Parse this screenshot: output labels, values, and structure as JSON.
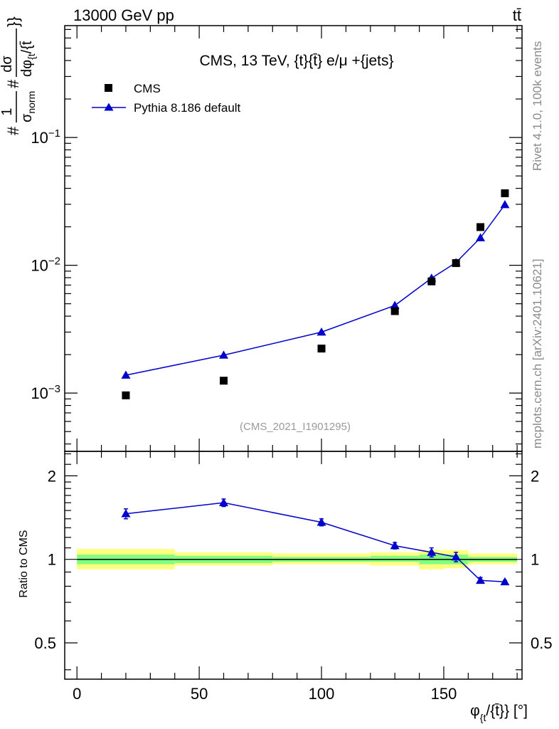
{
  "header": {
    "left_label": "13000 GeV pp",
    "right_label": "tt̄"
  },
  "side_notes": {
    "rivet": "Rivet 4.1.0,  100k events",
    "mcplots": "mcplots.cern.ch [arXiv:2401.10621]"
  },
  "colors": {
    "mc": "#0000cc",
    "data": "#000000",
    "band_outer": "#ffff80",
    "band_inner": "#80ff80"
  },
  "chart_data": [
    {
      "type": "scatter",
      "panel": "main",
      "title": "CMS, 13 TeV, {t}{t̄} e/μ +{jets}",
      "watermark": "(CMS_2021_I1901295)",
      "ylabel": "#1/σ_norm #dσ/dφ_{t}/{t̄}}",
      "ylabel_parts": {
        "prefix": "#",
        "frac_top": "1",
        "frac_bottom": "σ",
        "frac_bottom_sub": "norm",
        "hash2": "#",
        "d_top": "dσ",
        "d_bottom": "dφ",
        "d_bottom_sub": "{t",
        "d_bottom_tail": "/{t̄",
        "tail": "}}"
      },
      "xlabel": "",
      "xlim": [
        -5,
        182
      ],
      "ylim": [
        0.00035,
        0.75
      ],
      "yscale": "log",
      "ytick_labels": [
        {
          "base": "10",
          "exp": "−1",
          "value": 0.1
        },
        {
          "base": "10",
          "exp": "−2",
          "value": 0.01
        },
        {
          "base": "10",
          "exp": "−3",
          "value": 0.001
        }
      ],
      "legend_position": "top-left",
      "series": [
        {
          "name": "CMS",
          "marker": "square",
          "x": [
            20,
            60,
            100,
            130,
            145,
            155,
            165,
            175
          ],
          "y": [
            0.00096,
            0.00125,
            0.00223,
            0.00438,
            0.00748,
            0.0104,
            0.0199,
            0.0366
          ]
        },
        {
          "name": "Pythia 8.186 default",
          "marker": "triangle",
          "x": [
            20,
            60,
            100,
            130,
            145,
            155,
            165,
            175
          ],
          "y": [
            0.00138,
            0.00198,
            0.003,
            0.00485,
            0.00792,
            0.0105,
            0.0164,
            0.0298
          ]
        }
      ]
    },
    {
      "type": "line",
      "panel": "ratio",
      "ylabel": "Ratio to CMS",
      "xlabel": "φ_{t}/{t̄}} [°]",
      "xlabel_parts": {
        "phi": "φ",
        "sub": "{t",
        "rest": "/{t̄}} [°]"
      },
      "xlim": [
        -5,
        182
      ],
      "ylim": [
        0.37,
        2.45
      ],
      "yscale": "log",
      "x_tick_labels": [
        "0",
        "50",
        "100",
        "150"
      ],
      "x_tick_values": [
        0,
        50,
        100,
        150
      ],
      "y_tick_labels": [
        "0.5",
        "1",
        "2"
      ],
      "y_tick_values": [
        0.5,
        1,
        2
      ],
      "reference_line": 1,
      "bands": [
        {
          "x_range": [
            0,
            40
          ],
          "outer": [
            0.92,
            1.09
          ],
          "inner": [
            0.96,
            1.04
          ]
        },
        {
          "x_range": [
            40,
            80
          ],
          "outer": [
            0.95,
            1.06
          ],
          "inner": [
            0.97,
            1.03
          ]
        },
        {
          "x_range": [
            80,
            120
          ],
          "outer": [
            0.96,
            1.05
          ],
          "inner": [
            0.98,
            1.02
          ]
        },
        {
          "x_range": [
            120,
            140
          ],
          "outer": [
            0.95,
            1.06
          ],
          "inner": [
            0.98,
            1.03
          ]
        },
        {
          "x_range": [
            140,
            150
          ],
          "outer": [
            0.92,
            1.08
          ],
          "inner": [
            0.96,
            1.04
          ]
        },
        {
          "x_range": [
            150,
            160
          ],
          "outer": [
            0.93,
            1.08
          ],
          "inner": [
            0.96,
            1.04
          ]
        },
        {
          "x_range": [
            160,
            180
          ],
          "outer": [
            0.96,
            1.05
          ],
          "inner": [
            0.98,
            1.02
          ]
        }
      ],
      "series": [
        {
          "name": "Pythia 8.186 default",
          "x": [
            20,
            60,
            100,
            130,
            145,
            155,
            165,
            175
          ],
          "y": [
            1.46,
            1.6,
            1.36,
            1.12,
            1.06,
            1.02,
            0.84,
            0.83
          ],
          "err": [
            0.06,
            0.05,
            0.04,
            0.03,
            0.04,
            0.04,
            0.02,
            0.01
          ]
        }
      ]
    }
  ]
}
